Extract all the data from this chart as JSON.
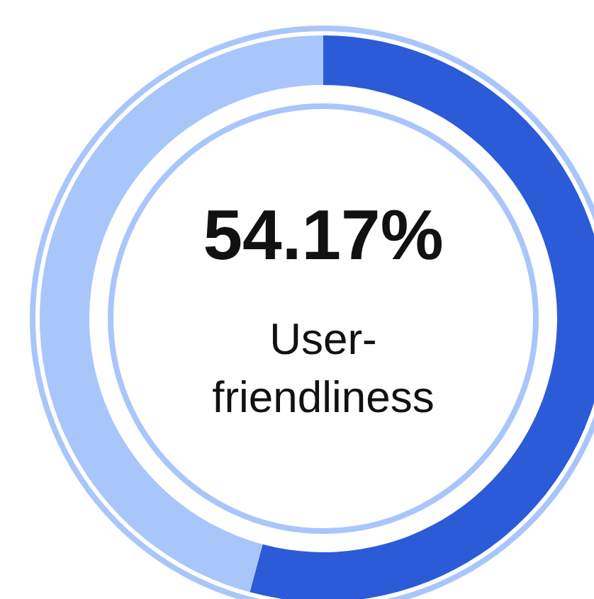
{
  "chart_data": {
    "type": "donut",
    "categories": [
      "User-friendliness",
      null
    ],
    "values": [
      54.17,
      45.83
    ],
    "colors": [
      "#2b5bd7",
      "#a9c6fb"
    ],
    "value_labels": [
      "54.17%",
      null
    ]
  }
}
